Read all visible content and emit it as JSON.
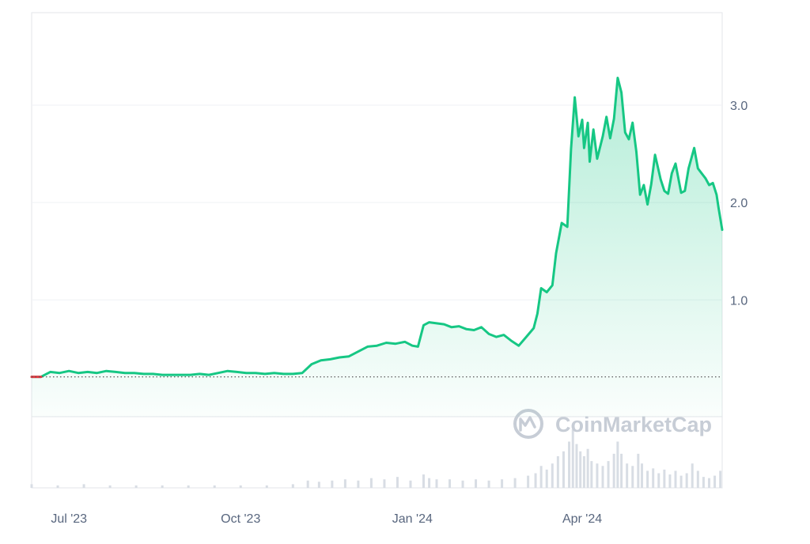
{
  "colors": {
    "line": "#16c784",
    "line_start": "#ea3943",
    "area_top": "#16c784",
    "grid": "#eff2f5",
    "frame": "#e3e6ea",
    "axis_text": "#58667e",
    "baseline_dots": "#5a5a5a",
    "volume": "#d8dde4",
    "watermark": "#c7cdd6"
  },
  "watermark": {
    "text": "CoinMarketCap",
    "icon": "coinmarketcap-logo-icon"
  },
  "chart_data": {
    "type": "area",
    "title": "",
    "xlabel": "",
    "ylabel": "",
    "ylim": [
      -0.93,
      3.95
    ],
    "y_axis_position": "right",
    "grid": true,
    "legend": "none",
    "baseline_reference": 0.21,
    "x_ticks": [
      {
        "label": "Jul '23",
        "date": "2023-07-01"
      },
      {
        "label": "Oct '23",
        "date": "2023-10-01"
      },
      {
        "label": "Jan '24",
        "date": "2024-01-01"
      },
      {
        "label": "Apr '24",
        "date": "2024-04-01"
      }
    ],
    "y_ticks": [
      {
        "label": "1.0",
        "value": 1.0
      },
      {
        "label": "2.0",
        "value": 2.0
      },
      {
        "label": "3.0",
        "value": 3.0
      }
    ],
    "series": [
      {
        "values": [
          [
            "2023-06-11",
            0.21
          ],
          [
            "2023-06-16",
            0.21
          ],
          [
            "2023-06-21",
            0.26
          ],
          [
            "2023-06-26",
            0.25
          ],
          [
            "2023-07-01",
            0.27
          ],
          [
            "2023-07-06",
            0.25
          ],
          [
            "2023-07-11",
            0.26
          ],
          [
            "2023-07-16",
            0.25
          ],
          [
            "2023-07-21",
            0.27
          ],
          [
            "2023-07-26",
            0.26
          ],
          [
            "2023-07-31",
            0.25
          ],
          [
            "2023-08-05",
            0.25
          ],
          [
            "2023-08-10",
            0.24
          ],
          [
            "2023-08-15",
            0.24
          ],
          [
            "2023-08-20",
            0.23
          ],
          [
            "2023-08-25",
            0.23
          ],
          [
            "2023-08-30",
            0.23
          ],
          [
            "2023-09-04",
            0.23
          ],
          [
            "2023-09-09",
            0.24
          ],
          [
            "2023-09-14",
            0.23
          ],
          [
            "2023-09-19",
            0.25
          ],
          [
            "2023-09-24",
            0.27
          ],
          [
            "2023-09-29",
            0.26
          ],
          [
            "2023-10-04",
            0.25
          ],
          [
            "2023-10-09",
            0.25
          ],
          [
            "2023-10-14",
            0.24
          ],
          [
            "2023-10-19",
            0.25
          ],
          [
            "2023-10-24",
            0.24
          ],
          [
            "2023-10-29",
            0.24
          ],
          [
            "2023-11-03",
            0.25
          ],
          [
            "2023-11-08",
            0.34
          ],
          [
            "2023-11-13",
            0.38
          ],
          [
            "2023-11-18",
            0.39
          ],
          [
            "2023-11-23",
            0.41
          ],
          [
            "2023-11-28",
            0.42
          ],
          [
            "2023-12-03",
            0.47
          ],
          [
            "2023-12-08",
            0.52
          ],
          [
            "2023-12-13",
            0.53
          ],
          [
            "2023-12-18",
            0.56
          ],
          [
            "2023-12-23",
            0.55
          ],
          [
            "2023-12-28",
            0.57
          ],
          [
            "2024-01-01",
            0.53
          ],
          [
            "2024-01-04",
            0.52
          ],
          [
            "2024-01-07",
            0.74
          ],
          [
            "2024-01-10",
            0.77
          ],
          [
            "2024-01-14",
            0.76
          ],
          [
            "2024-01-18",
            0.75
          ],
          [
            "2024-01-22",
            0.72
          ],
          [
            "2024-01-26",
            0.73
          ],
          [
            "2024-01-30",
            0.7
          ],
          [
            "2024-02-03",
            0.69
          ],
          [
            "2024-02-07",
            0.72
          ],
          [
            "2024-02-11",
            0.65
          ],
          [
            "2024-02-15",
            0.62
          ],
          [
            "2024-02-19",
            0.64
          ],
          [
            "2024-02-23",
            0.58
          ],
          [
            "2024-02-27",
            0.53
          ],
          [
            "2024-03-02",
            0.62
          ],
          [
            "2024-03-06",
            0.71
          ],
          [
            "2024-03-08",
            0.86
          ],
          [
            "2024-03-10",
            1.12
          ],
          [
            "2024-03-13",
            1.08
          ],
          [
            "2024-03-16",
            1.15
          ],
          [
            "2024-03-18",
            1.48
          ],
          [
            "2024-03-21",
            1.79
          ],
          [
            "2024-03-24",
            1.75
          ],
          [
            "2024-03-26",
            2.55
          ],
          [
            "2024-03-28",
            3.08
          ],
          [
            "2024-03-30",
            2.68
          ],
          [
            "2024-04-01",
            2.85
          ],
          [
            "2024-04-02",
            2.56
          ],
          [
            "2024-04-04",
            2.82
          ],
          [
            "2024-04-05",
            2.42
          ],
          [
            "2024-04-07",
            2.75
          ],
          [
            "2024-04-09",
            2.45
          ],
          [
            "2024-04-12",
            2.68
          ],
          [
            "2024-04-14",
            2.88
          ],
          [
            "2024-04-16",
            2.66
          ],
          [
            "2024-04-18",
            2.86
          ],
          [
            "2024-04-20",
            3.28
          ],
          [
            "2024-04-22",
            3.13
          ],
          [
            "2024-04-24",
            2.72
          ],
          [
            "2024-04-26",
            2.65
          ],
          [
            "2024-04-28",
            2.82
          ],
          [
            "2024-04-30",
            2.52
          ],
          [
            "2024-05-02",
            2.08
          ],
          [
            "2024-05-04",
            2.18
          ],
          [
            "2024-05-06",
            1.98
          ],
          [
            "2024-05-08",
            2.19
          ],
          [
            "2024-05-10",
            2.49
          ],
          [
            "2024-05-13",
            2.24
          ],
          [
            "2024-05-15",
            2.12
          ],
          [
            "2024-05-17",
            2.09
          ],
          [
            "2024-05-19",
            2.3
          ],
          [
            "2024-05-21",
            2.4
          ],
          [
            "2024-05-24",
            2.1
          ],
          [
            "2024-05-26",
            2.12
          ],
          [
            "2024-05-28",
            2.35
          ],
          [
            "2024-05-31",
            2.56
          ],
          [
            "2024-06-02",
            2.35
          ],
          [
            "2024-06-04",
            2.3
          ],
          [
            "2024-06-06",
            2.25
          ],
          [
            "2024-06-08",
            2.18
          ],
          [
            "2024-06-10",
            2.2
          ],
          [
            "2024-06-12",
            2.08
          ],
          [
            "2024-06-13",
            1.95
          ],
          [
            "2024-06-15",
            1.72
          ]
        ]
      }
    ],
    "volume": {
      "ylim": [
        0,
        0.5
      ],
      "values": [
        [
          "2023-06-11",
          0.03
        ],
        [
          "2023-06-25",
          0.02
        ],
        [
          "2023-07-09",
          0.03
        ],
        [
          "2023-07-23",
          0.02
        ],
        [
          "2023-08-06",
          0.02
        ],
        [
          "2023-08-20",
          0.02
        ],
        [
          "2023-09-03",
          0.02
        ],
        [
          "2023-09-17",
          0.02
        ],
        [
          "2023-10-01",
          0.02
        ],
        [
          "2023-10-15",
          0.02
        ],
        [
          "2023-10-29",
          0.03
        ],
        [
          "2023-11-06",
          0.06
        ],
        [
          "2023-11-12",
          0.05
        ],
        [
          "2023-11-19",
          0.06
        ],
        [
          "2023-11-26",
          0.07
        ],
        [
          "2023-12-03",
          0.06
        ],
        [
          "2023-12-10",
          0.08
        ],
        [
          "2023-12-17",
          0.07
        ],
        [
          "2023-12-24",
          0.09
        ],
        [
          "2023-12-31",
          0.06
        ],
        [
          "2024-01-07",
          0.11
        ],
        [
          "2024-01-10",
          0.08
        ],
        [
          "2024-01-14",
          0.07
        ],
        [
          "2024-01-21",
          0.07
        ],
        [
          "2024-01-28",
          0.06
        ],
        [
          "2024-02-04",
          0.07
        ],
        [
          "2024-02-11",
          0.06
        ],
        [
          "2024-02-18",
          0.07
        ],
        [
          "2024-02-25",
          0.08
        ],
        [
          "2024-03-03",
          0.1
        ],
        [
          "2024-03-07",
          0.12
        ],
        [
          "2024-03-10",
          0.18
        ],
        [
          "2024-03-13",
          0.15
        ],
        [
          "2024-03-16",
          0.2
        ],
        [
          "2024-03-19",
          0.26
        ],
        [
          "2024-03-22",
          0.3
        ],
        [
          "2024-03-25",
          0.38
        ],
        [
          "2024-03-27",
          0.48
        ],
        [
          "2024-03-29",
          0.36
        ],
        [
          "2024-03-31",
          0.3
        ],
        [
          "2024-04-02",
          0.26
        ],
        [
          "2024-04-04",
          0.32
        ],
        [
          "2024-04-06",
          0.22
        ],
        [
          "2024-04-09",
          0.2
        ],
        [
          "2024-04-12",
          0.18
        ],
        [
          "2024-04-15",
          0.22
        ],
        [
          "2024-04-18",
          0.28
        ],
        [
          "2024-04-20",
          0.38
        ],
        [
          "2024-04-22",
          0.28
        ],
        [
          "2024-04-25",
          0.2
        ],
        [
          "2024-04-28",
          0.18
        ],
        [
          "2024-05-01",
          0.28
        ],
        [
          "2024-05-03",
          0.2
        ],
        [
          "2024-05-06",
          0.14
        ],
        [
          "2024-05-09",
          0.16
        ],
        [
          "2024-05-12",
          0.12
        ],
        [
          "2024-05-15",
          0.15
        ],
        [
          "2024-05-18",
          0.11
        ],
        [
          "2024-05-21",
          0.14
        ],
        [
          "2024-05-24",
          0.1
        ],
        [
          "2024-05-27",
          0.12
        ],
        [
          "2024-05-30",
          0.2
        ],
        [
          "2024-06-02",
          0.14
        ],
        [
          "2024-06-05",
          0.09
        ],
        [
          "2024-06-08",
          0.08
        ],
        [
          "2024-06-11",
          0.1
        ],
        [
          "2024-06-14",
          0.14
        ]
      ]
    }
  }
}
